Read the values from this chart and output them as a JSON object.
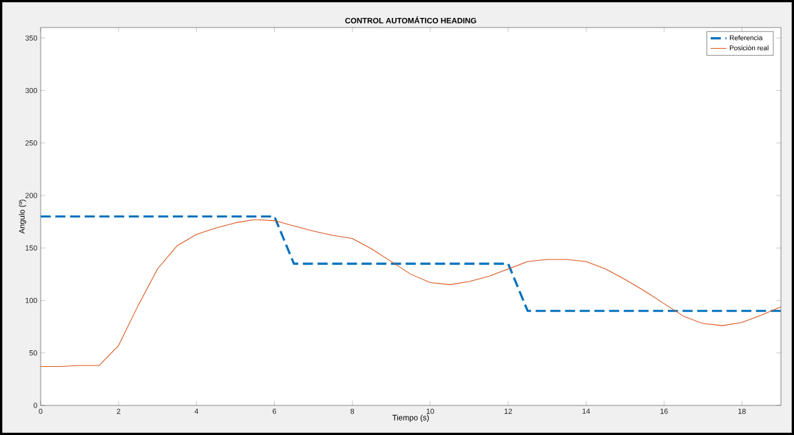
{
  "chart_data": {
    "type": "line",
    "title": "CONTROL AUTOMÁTICO HEADING",
    "xlabel": "Tiempo (s)",
    "ylabel": "Angulo (º)",
    "x": [
      0,
      0.5,
      1,
      1.5,
      2,
      2.5,
      3,
      3.5,
      4,
      4.5,
      5,
      5.5,
      6,
      6.5,
      7,
      7.5,
      8,
      8.5,
      9,
      9.5,
      10,
      10.5,
      11,
      11.5,
      12,
      12.5,
      13,
      13.5,
      14,
      14.5,
      15,
      15.5,
      16,
      16.5,
      17,
      17.5,
      18,
      18.5,
      19
    ],
    "series": [
      {
        "name": "Referencia",
        "color": "#0072bd",
        "line_style": "dashed",
        "values": [
          180,
          180,
          180,
          180,
          180,
          180,
          180,
          180,
          180,
          180,
          180,
          180,
          180,
          135,
          135,
          135,
          135,
          135,
          135,
          135,
          135,
          135,
          135,
          135,
          135,
          90,
          90,
          90,
          90,
          90,
          90,
          90,
          90,
          90,
          90,
          90,
          90,
          90,
          90
        ]
      },
      {
        "name": "Posición real",
        "color": "#d95319",
        "line_style": "solid",
        "values": [
          37,
          37,
          38,
          38,
          57,
          95,
          130,
          152,
          163,
          169,
          174,
          177,
          176,
          171,
          166,
          162,
          159,
          149,
          137,
          125,
          117,
          115,
          118,
          123,
          130,
          137,
          139,
          139,
          137,
          130,
          120,
          109,
          97,
          85,
          78,
          76,
          79,
          86,
          94
        ]
      }
    ],
    "xlim": [
      0,
      19
    ],
    "ylim": [
      0,
      360
    ],
    "xticks": [
      0,
      2,
      4,
      6,
      8,
      10,
      12,
      14,
      16,
      18
    ],
    "yticks": [
      0,
      50,
      100,
      150,
      200,
      250,
      300,
      350
    ],
    "grid": false,
    "legend": "top right",
    "marker": "none"
  }
}
